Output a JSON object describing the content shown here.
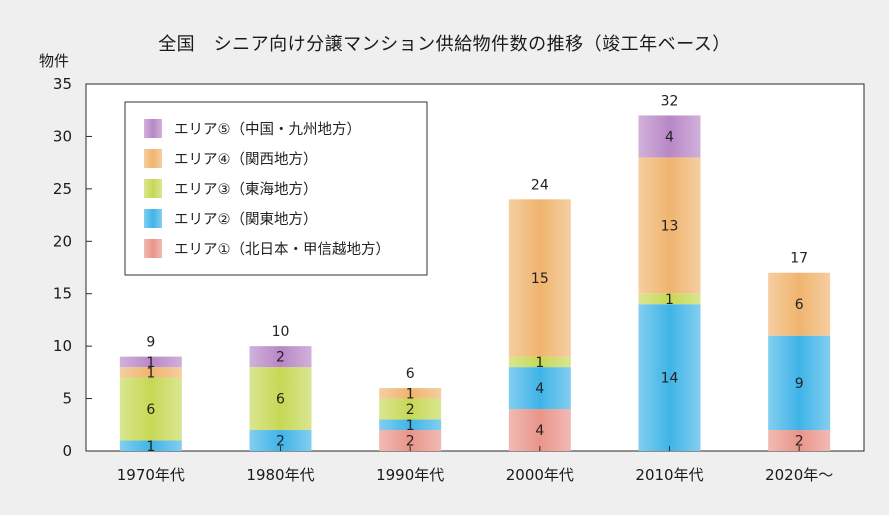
{
  "chart_data": {
    "type": "bar",
    "stacked": true,
    "title": "全国　シニア向け分譲マンション供給物件数の推移（竣工年ベース）",
    "ylabel": "物件",
    "xlabel": "",
    "ylim": [
      0,
      35
    ],
    "yticks": [
      0,
      5,
      10,
      15,
      20,
      25,
      30,
      35
    ],
    "grid": false,
    "legend_position": "top-left",
    "categories": [
      "1970年代",
      "1980年代",
      "1990年代",
      "2000年代",
      "2010年代",
      "2020年～"
    ],
    "series": [
      {
        "name": "エリア①（北日本・甲信越地方）",
        "color": "#e9958a",
        "values": [
          0,
          0,
          2,
          4,
          0,
          2
        ]
      },
      {
        "name": "エリア②（関東地方）",
        "color": "#3fb4e8",
        "values": [
          1,
          2,
          1,
          4,
          14,
          9
        ]
      },
      {
        "name": "エリア③（東海地方）",
        "color": "#c6d855",
        "values": [
          6,
          6,
          2,
          1,
          1,
          0
        ]
      },
      {
        "name": "エリア④（関西地方）",
        "color": "#f0b46e",
        "values": [
          1,
          0,
          1,
          15,
          13,
          6
        ]
      },
      {
        "name": "エリア⑤（中国・九州地方）",
        "color": "#b887c6",
        "values": [
          1,
          2,
          0,
          0,
          4,
          0
        ]
      }
    ],
    "totals": [
      9,
      10,
      6,
      24,
      32,
      17
    ]
  }
}
